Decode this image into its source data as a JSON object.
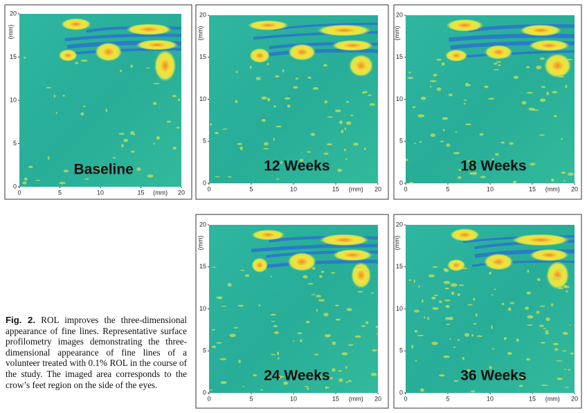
{
  "panels": [
    {
      "label": "Baseline",
      "x_ticks": [
        0,
        5,
        10,
        15,
        20
      ],
      "y_ticks": [
        0,
        5,
        10,
        15,
        20
      ],
      "x_unit": "(mm)",
      "y_unit": "(mm)"
    },
    {
      "label": "12 Weeks",
      "x_ticks": [
        0,
        5,
        10,
        15,
        20
      ],
      "y_ticks": [
        0,
        5,
        10,
        15,
        20
      ],
      "x_unit": "(mm)",
      "y_unit": "(mm)"
    },
    {
      "label": "18 Weeks",
      "x_ticks": [
        0,
        5,
        10,
        15,
        20
      ],
      "y_ticks": [
        0,
        5,
        10,
        15,
        20
      ],
      "x_unit": "(mm)",
      "y_unit": "(mm)"
    },
    {
      "label": "24 Weeks",
      "x_ticks": [
        0,
        5,
        10,
        15,
        20
      ],
      "y_ticks": [
        0,
        5,
        10,
        15,
        20
      ],
      "x_unit": "(mm)",
      "y_unit": "(mm)"
    },
    {
      "label": "36 Weeks",
      "x_ticks": [
        0,
        5,
        10,
        15,
        20
      ],
      "y_ticks": [
        0,
        5,
        10,
        15,
        20
      ],
      "x_unit": "(mm)",
      "y_unit": "(mm)"
    }
  ],
  "caption": {
    "label": "Fig. 2.",
    "text": "ROL improves the three-dimensional appearance of fine lines. Representative surface profilometry images demonstrating the three-dimensional appearance of fine lines of a volunteer treated with 0.1% ROL in the course of the study. The imaged area corresponds to the crow’s feet region on the side of the eyes."
  }
}
